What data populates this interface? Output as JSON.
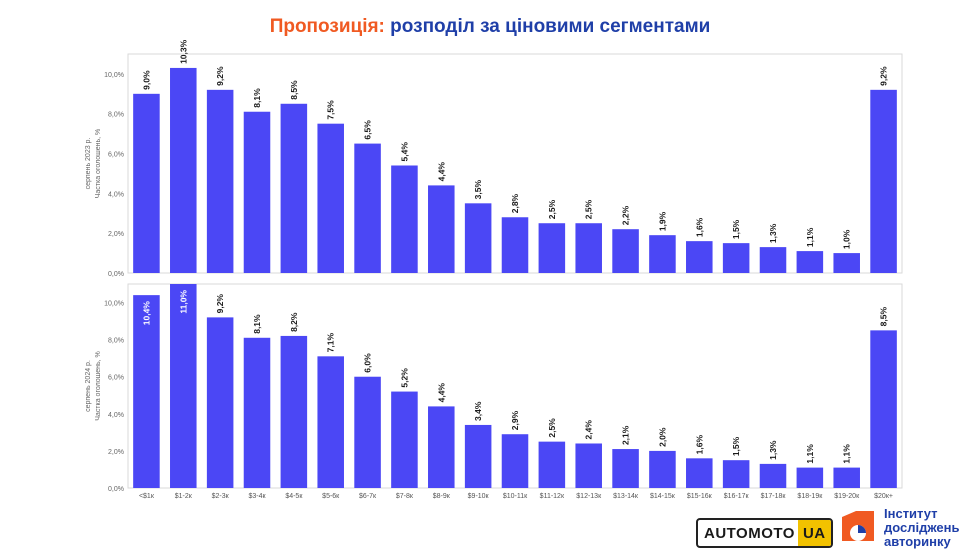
{
  "title": {
    "accent": "Пропозиція:",
    "rest": "розподіл за ціновими сегментами"
  },
  "colors": {
    "bar": "#4b47f5",
    "title_accent": "#f05a22",
    "title": "#1f3fa8",
    "grid": "#d9d9d9"
  },
  "chart_data": {
    "type": "bar",
    "categories": [
      "<$1к",
      "$1-2к",
      "$2-3к",
      "$3-4к",
      "$4-5к",
      "$5-6к",
      "$6-7к",
      "$7-8к",
      "$8-9к",
      "$9-10к",
      "$10-11к",
      "$11-12к",
      "$12-13к",
      "$13-14к",
      "$14-15к",
      "$15-16к",
      "$16-17к",
      "$17-18к",
      "$18-19к",
      "$19-20к",
      "$20к+"
    ],
    "panels": [
      {
        "ylabel_period": "серпень 2023 р.",
        "ylabel": "Частка оголошень, %",
        "yticks": [
          "0,0%",
          "2,0%",
          "4,0%",
          "6,0%",
          "8,0%",
          "10,0%"
        ],
        "ylim": [
          0,
          11
        ],
        "values": [
          9.0,
          10.3,
          9.2,
          8.1,
          8.5,
          7.5,
          6.5,
          5.4,
          4.4,
          3.5,
          2.8,
          2.5,
          2.5,
          2.2,
          1.9,
          1.6,
          1.5,
          1.3,
          1.1,
          1.0,
          9.2
        ],
        "labels": [
          "9,0%",
          "10,3%",
          "9,2%",
          "8,1%",
          "8,5%",
          "7,5%",
          "6,5%",
          "5,4%",
          "4,4%",
          "3,5%",
          "2,8%",
          "2,5%",
          "2,5%",
          "2,2%",
          "1,9%",
          "1,6%",
          "1,5%",
          "1,3%",
          "1,1%",
          "1,0%",
          "9,2%"
        ],
        "inside": []
      },
      {
        "ylabel_period": "серпень 2024 р.",
        "ylabel": "Частка оголошень, %",
        "yticks": [
          "0,0%",
          "2,0%",
          "4,0%",
          "6,0%",
          "8,0%",
          "10,0%"
        ],
        "ylim": [
          0,
          11
        ],
        "values": [
          10.4,
          11.0,
          9.2,
          8.1,
          8.2,
          7.1,
          6.0,
          5.2,
          4.4,
          3.4,
          2.9,
          2.5,
          2.4,
          2.1,
          2.0,
          1.6,
          1.5,
          1.3,
          1.1,
          1.1,
          8.5
        ],
        "labels": [
          "10,4%",
          "11,0%",
          "9,2%",
          "8,1%",
          "8,2%",
          "7,1%",
          "6,0%",
          "5,2%",
          "4,4%",
          "3,4%",
          "2,9%",
          "2,5%",
          "2,4%",
          "2,1%",
          "2,0%",
          "1,6%",
          "1,5%",
          "1,3%",
          "1,1%",
          "1,1%",
          "8,5%"
        ],
        "inside": [
          0,
          1
        ]
      }
    ]
  },
  "logos": {
    "automoto": {
      "main": "AUTOMOTO",
      "suffix": "UA"
    },
    "institute": {
      "line1": "Інститут",
      "line2": "досліджень",
      "line3": "авторинку"
    }
  }
}
